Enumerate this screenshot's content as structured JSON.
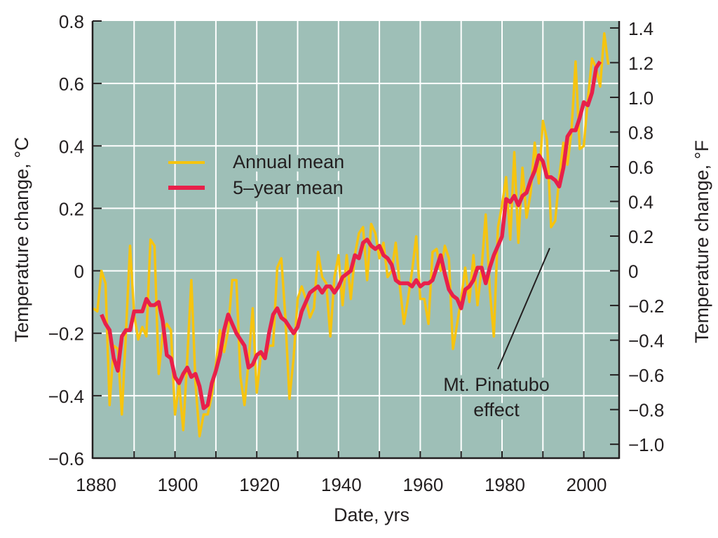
{
  "chart_data": {
    "type": "line",
    "title": "",
    "xlabel": "Date, yrs",
    "ylabel": "Temperature change, °C",
    "ylabel_right": "Temperature change, °F",
    "xlim": [
      1880,
      2008
    ],
    "ylim": [
      -0.6,
      0.8
    ],
    "ylim_right_F": [
      -1.08,
      1.44
    ],
    "x_ticks": [
      1880,
      1900,
      1920,
      1940,
      1960,
      1980,
      2000
    ],
    "x_tick_labels": [
      "1880",
      "1900",
      "1920",
      "1940",
      "1960",
      "1980",
      "2000"
    ],
    "y_ticks": [
      0.8,
      0.6,
      0.4,
      0.2,
      0,
      -0.2,
      -0.4,
      -0.6
    ],
    "y_tick_labels": [
      "0.8",
      "0.6",
      "0.4",
      "0.2",
      "0",
      "−0.2",
      "−0.4",
      "−0.6"
    ],
    "y_right_ticks": [
      1.4,
      1.2,
      1.0,
      0.8,
      0.6,
      0.4,
      0.2,
      0,
      -0.2,
      -0.4,
      -0.6,
      -0.8,
      -1.0
    ],
    "y_right_tick_labels": [
      "1.4",
      "1.2",
      "1.0",
      "0.8",
      "0.6",
      "0.4",
      "0.2",
      "0",
      "−0.2",
      "−0.4",
      "−0.6",
      "−0.8",
      "−1.0"
    ],
    "grid": true,
    "grid_x_step_years": 10,
    "grid_y_step_C": 0.2,
    "background_color": "#9ebfb7",
    "grid_color": "#ffffff",
    "legend_placement": "upper-left",
    "series": [
      {
        "name": "Annual mean",
        "color": "#f6c40f",
        "x_start": 1880,
        "values": [
          -0.12,
          -0.13,
          0.0,
          -0.04,
          -0.43,
          -0.24,
          -0.25,
          -0.46,
          -0.2,
          0.08,
          -0.14,
          -0.22,
          -0.18,
          -0.21,
          0.1,
          0.08,
          -0.33,
          -0.2,
          -0.17,
          -0.19,
          -0.46,
          -0.36,
          -0.51,
          -0.28,
          -0.03,
          -0.36,
          -0.53,
          -0.46,
          -0.46,
          -0.4,
          -0.3,
          -0.19,
          -0.26,
          -0.19,
          -0.03,
          -0.03,
          -0.34,
          -0.43,
          -0.29,
          -0.12,
          -0.39,
          -0.27,
          -0.28,
          -0.24,
          -0.24,
          0.01,
          0.04,
          -0.15,
          -0.41,
          -0.28,
          -0.09,
          -0.05,
          -0.09,
          -0.15,
          -0.12,
          0.06,
          -0.02,
          -0.04,
          -0.21,
          -0.02,
          0.05,
          -0.11,
          0.05,
          -0.09,
          0.05,
          0.12,
          0.14,
          -0.03,
          0.15,
          0.12,
          0.04,
          0.09,
          -0.02,
          0.0,
          0.09,
          -0.05,
          -0.17,
          -0.09,
          0.0,
          0.11,
          -0.09,
          -0.09,
          -0.17,
          0.06,
          0.07,
          0.0,
          0.08,
          0.04,
          -0.25,
          -0.17,
          -0.09,
          0.01,
          -0.1,
          0.05,
          -0.11,
          0.01,
          0.18,
          -0.06,
          -0.21,
          0.14,
          0.21,
          0.3,
          0.1,
          0.38,
          0.09,
          0.33,
          0.17,
          0.25,
          0.41,
          0.28,
          0.48,
          0.42,
          0.14,
          0.16,
          0.3,
          0.41,
          0.34,
          0.45,
          0.67,
          0.39,
          0.4,
          0.55,
          0.68,
          0.65,
          0.59,
          0.76,
          0.66
        ]
      },
      {
        "name": "5–year mean",
        "color": "#e8204a",
        "x_start": 1882,
        "values": [
          -0.14,
          -0.17,
          -0.19,
          -0.28,
          -0.32,
          -0.21,
          -0.19,
          -0.19,
          -0.13,
          -0.13,
          -0.13,
          -0.09,
          -0.11,
          -0.11,
          -0.1,
          -0.16,
          -0.27,
          -0.28,
          -0.34,
          -0.36,
          -0.33,
          -0.31,
          -0.34,
          -0.33,
          -0.37,
          -0.44,
          -0.43,
          -0.36,
          -0.32,
          -0.27,
          -0.19,
          -0.14,
          -0.17,
          -0.2,
          -0.22,
          -0.24,
          -0.31,
          -0.3,
          -0.27,
          -0.26,
          -0.28,
          -0.2,
          -0.14,
          -0.12,
          -0.15,
          -0.16,
          -0.18,
          -0.2,
          -0.18,
          -0.13,
          -0.1,
          -0.07,
          -0.06,
          -0.05,
          -0.07,
          -0.05,
          -0.05,
          -0.07,
          -0.05,
          -0.02,
          -0.01,
          0.0,
          0.05,
          0.04,
          0.09,
          0.1,
          0.08,
          0.07,
          0.08,
          0.05,
          0.04,
          0.02,
          -0.03,
          -0.04,
          -0.04,
          -0.04,
          -0.05,
          -0.03,
          -0.05,
          -0.04,
          -0.04,
          -0.03,
          0.01,
          0.05,
          -0.01,
          -0.06,
          -0.08,
          -0.09,
          -0.12,
          -0.06,
          -0.05,
          -0.03,
          0.01,
          0.01,
          -0.04,
          0.01,
          0.05,
          0.08,
          0.11,
          0.23,
          0.22,
          0.24,
          0.21,
          0.24,
          0.25,
          0.29,
          0.32,
          0.37,
          0.35,
          0.3,
          0.3,
          0.29,
          0.27,
          0.33,
          0.43,
          0.45,
          0.45,
          0.49,
          0.54,
          0.53,
          0.57,
          0.65,
          0.67
        ]
      }
    ],
    "legend": [
      {
        "label": "Annual mean",
        "color": "#f6c40f"
      },
      {
        "label": "5–year mean",
        "color": "#e8204a"
      }
    ],
    "annotations": [
      {
        "text_line1": "Mt. Pinatubo",
        "text_line2": "effect",
        "points_to_year": 1992,
        "points_to_value": 0.14
      }
    ]
  }
}
